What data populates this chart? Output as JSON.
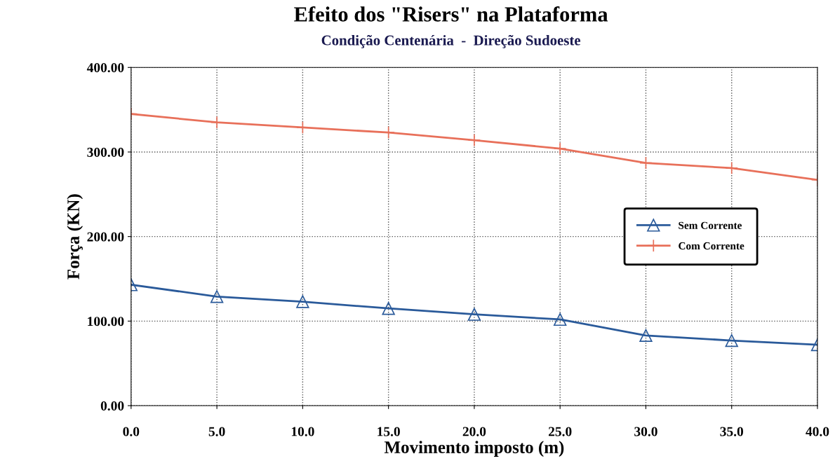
{
  "chart_data": {
    "type": "line",
    "title": "Efeito dos \"Risers\" na Plataforma",
    "subtitle": "Condição Centenária  -  Direção Sudoeste",
    "xlabel": "Movimento imposto (m)",
    "ylabel": "Força (KN)",
    "x": [
      0,
      5,
      10,
      15,
      20,
      25,
      30,
      35,
      40
    ],
    "series": [
      {
        "name": "Sem Corrente",
        "color": "#2a5a9a",
        "marker": "triangle",
        "values": [
          143,
          129,
          123,
          115,
          108,
          102,
          83,
          77,
          72
        ]
      },
      {
        "name": "Com Corrente",
        "color": "#e8705a",
        "marker": "cross",
        "values": [
          345,
          335,
          329,
          323,
          314,
          304,
          287,
          281,
          267
        ]
      }
    ],
    "xlim": [
      0,
      40
    ],
    "ylim": [
      0,
      400
    ],
    "xticks": [
      {
        "value": 0,
        "label": "0.0"
      },
      {
        "value": 5,
        "label": "5.0"
      },
      {
        "value": 10,
        "label": "10.0"
      },
      {
        "value": 15,
        "label": "15.0"
      },
      {
        "value": 20,
        "label": "20.0"
      },
      {
        "value": 25,
        "label": "25.0"
      },
      {
        "value": 30,
        "label": "30.0"
      },
      {
        "value": 35,
        "label": "35.0"
      },
      {
        "value": 40,
        "label": "40.0"
      }
    ],
    "yticks": [
      {
        "value": 0,
        "label": "0.00"
      },
      {
        "value": 100,
        "label": "100.00"
      },
      {
        "value": 200,
        "label": "200.00"
      },
      {
        "value": 300,
        "label": "300.00"
      },
      {
        "value": 400,
        "label": "400.00"
      }
    ],
    "grid": true,
    "legend": "right",
    "line_style": "solid"
  }
}
